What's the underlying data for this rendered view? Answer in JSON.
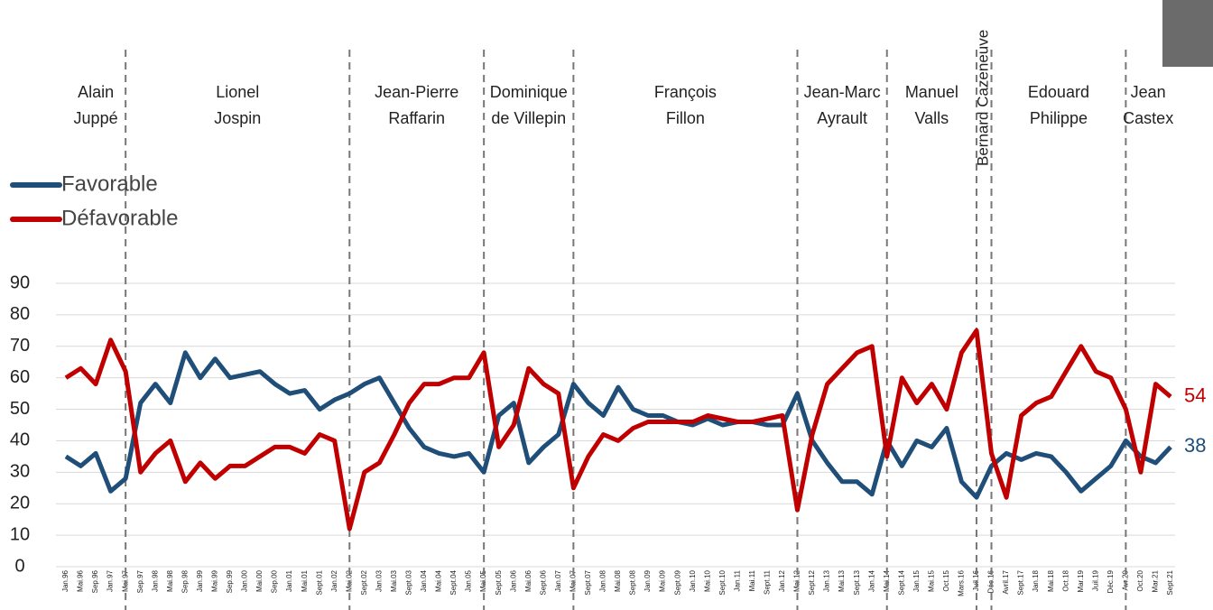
{
  "chart_data": {
    "type": "line",
    "categories": [
      "Jan.96",
      "Mai.96",
      "Sep.96",
      "Jan.97",
      "Mai.97",
      "Sep.97",
      "Jan.98",
      "Mai.98",
      "Sep.98",
      "Jan.99",
      "Mai.99",
      "Sep.99",
      "Jan.00",
      "Mai.00",
      "Sep.00",
      "Jan.01",
      "Mai.01",
      "Sept.01",
      "Jan.02",
      "Mai.02",
      "Sept.02",
      "Jan.03",
      "Mai.03",
      "Sept.03",
      "Jan.04",
      "Mai.04",
      "Sept.04",
      "Jan.05",
      "Mai.05",
      "Sept.05",
      "Jan.06",
      "Mai.06",
      "Sept.06",
      "Jan.07",
      "Mai.07",
      "Sept.07",
      "Jan.08",
      "Mai.08",
      "Sept.08",
      "Jan.09",
      "Mai.09",
      "Sept.09",
      "Jan.10",
      "Mai.10",
      "Sept.10",
      "Jan.11",
      "Mai.11",
      "Sept.11",
      "Jan.12",
      "Mai.12",
      "Sept.12",
      "Jan.13",
      "Mai.13",
      "Sept.13",
      "Jan.14",
      "Mai.14",
      "Sept.14",
      "Jan.15",
      "Mai.15",
      "Oct.15",
      "Mars.16",
      "Juil.16",
      "Déc.16",
      "Avril.17",
      "Sept.17",
      "Jan.18",
      "Mai.18",
      "Oct.18",
      "Mar.19",
      "Juil.19",
      "Déc.19",
      "Avr.20",
      "Oct.20",
      "Mar.21",
      "Sept.21"
    ],
    "series": [
      {
        "name": "Favorable",
        "color": "#1f4e79",
        "values": [
          35,
          32,
          36,
          24,
          28,
          52,
          58,
          52,
          68,
          60,
          66,
          60,
          61,
          62,
          58,
          55,
          56,
          50,
          53,
          55,
          58,
          60,
          52,
          44,
          38,
          36,
          35,
          36,
          30,
          48,
          52,
          33,
          38,
          42,
          58,
          52,
          48,
          57,
          50,
          48,
          48,
          46,
          45,
          47,
          45,
          46,
          46,
          45,
          45,
          55,
          40,
          33,
          27,
          27,
          23,
          40,
          32,
          40,
          38,
          44,
          27,
          22,
          32,
          36,
          34,
          36,
          35,
          30,
          24,
          28,
          32,
          40,
          35,
          33,
          38
        ]
      },
      {
        "name": "Défavorable",
        "color": "#c00000",
        "values": [
          60,
          63,
          58,
          72,
          62,
          30,
          36,
          40,
          27,
          33,
          28,
          32,
          32,
          35,
          38,
          38,
          36,
          42,
          40,
          12,
          30,
          33,
          42,
          52,
          58,
          58,
          60,
          60,
          68,
          38,
          45,
          63,
          58,
          55,
          25,
          35,
          42,
          40,
          44,
          46,
          46,
          46,
          46,
          48,
          47,
          46,
          46,
          47,
          48,
          18,
          42,
          58,
          63,
          68,
          70,
          35,
          60,
          52,
          58,
          50,
          68,
          75,
          36,
          22,
          48,
          52,
          54,
          62,
          70,
          62,
          60,
          50,
          30,
          58,
          54
        ]
      }
    ],
    "ylim": [
      0,
      90
    ],
    "yticks": [
      0,
      10,
      20,
      30,
      40,
      50,
      60,
      70,
      80,
      90
    ],
    "grid": true,
    "pm_terms": [
      {
        "lines": [
          "Alain",
          "Juppé"
        ],
        "start": 0
      },
      {
        "lines": [
          "Lionel",
          "Jospin"
        ],
        "start": 4
      },
      {
        "lines": [
          "Jean-Pierre",
          "Raffarin"
        ],
        "start": 19
      },
      {
        "lines": [
          "Dominique",
          "de Villepin"
        ],
        "start": 28
      },
      {
        "lines": [
          "François",
          "Fillon"
        ],
        "start": 34
      },
      {
        "lines": [
          "Jean-Marc",
          "Ayrault"
        ],
        "start": 49
      },
      {
        "lines": [
          "Manuel",
          "Valls"
        ],
        "start": 55
      },
      {
        "lines": [
          "Bernard Cazeneuve"
        ],
        "start": 61
      },
      {
        "lines": [
          "Edouard",
          "Philippe"
        ],
        "start": 62
      },
      {
        "lines": [
          "Jean",
          "Castex"
        ],
        "start": 71
      }
    ]
  }
}
